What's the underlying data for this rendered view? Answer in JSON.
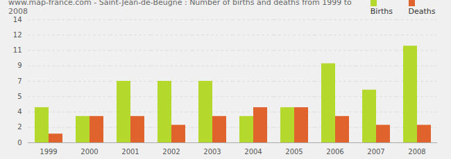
{
  "chart_data": {
    "type": "bar",
    "title": "www.map-france.com - Saint-Jean-de-Beugné : Number of births and deaths from 1999 to 2008",
    "categories": [
      "1999",
      "2000",
      "2001",
      "2002",
      "2003",
      "2004",
      "2005",
      "2006",
      "2007",
      "2008"
    ],
    "series": [
      {
        "name": "Births",
        "color": "#b5d82c",
        "values": [
          4,
          3,
          7,
          7,
          7,
          3,
          4,
          9,
          6,
          11
        ]
      },
      {
        "name": "Deaths",
        "color": "#e0622d",
        "values": [
          1,
          3,
          3,
          2,
          3,
          4,
          4,
          3,
          2,
          2
        ]
      }
    ],
    "ylim": [
      0,
      14
    ],
    "yticks": [
      0,
      {
        "value": 1.75,
        "label": "2"
      },
      {
        "value": 3.5,
        "label": "4"
      },
      {
        "value": 5.25,
        "label": "5"
      },
      7,
      {
        "value": 8.75,
        "label": "9"
      },
      {
        "value": 10.5,
        "label": "11"
      },
      {
        "value": 12.25,
        "label": "12"
      },
      14
    ],
    "grid": true,
    "legend": "top-right"
  }
}
